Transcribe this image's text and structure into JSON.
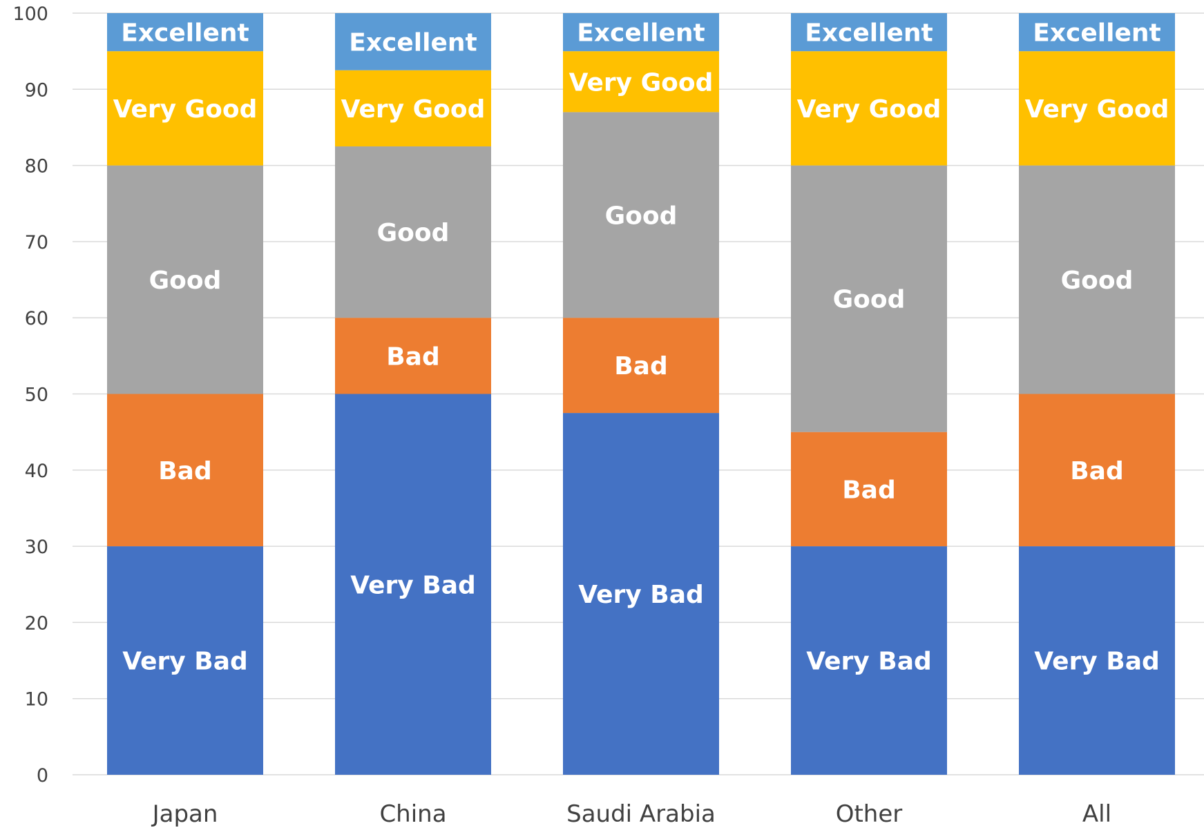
{
  "chart_data": {
    "type": "bar",
    "stacked": true,
    "categories": [
      "Japan",
      "China",
      "Saudi Arabia",
      "Other",
      "All"
    ],
    "series": [
      {
        "name": "Very Bad",
        "label": "Very Bad",
        "color": "#4472C4",
        "values": [
          30,
          50,
          47.5,
          30,
          30
        ]
      },
      {
        "name": "Bad",
        "label": "Bad",
        "color": "#ED7D31",
        "values": [
          20,
          10,
          12.5,
          15,
          20
        ]
      },
      {
        "name": "Good",
        "label": "Good",
        "color": "#A5A5A5",
        "values": [
          30,
          22.5,
          27,
          35,
          30
        ]
      },
      {
        "name": "Very Good",
        "label": "Very Good",
        "color": "#FFC000",
        "values": [
          15,
          10,
          8,
          15,
          15
        ]
      },
      {
        "name": "Excellent",
        "label": "Excellent",
        "color": "#5B9BD5",
        "values": [
          5,
          7.5,
          5,
          5,
          5
        ]
      }
    ],
    "ylim": [
      0,
      100
    ],
    "yticks": [
      0,
      10,
      20,
      30,
      40,
      50,
      60,
      70,
      80,
      90,
      100
    ],
    "grid": true,
    "legend": "none",
    "title": "",
    "xlabel": "",
    "ylabel": ""
  }
}
